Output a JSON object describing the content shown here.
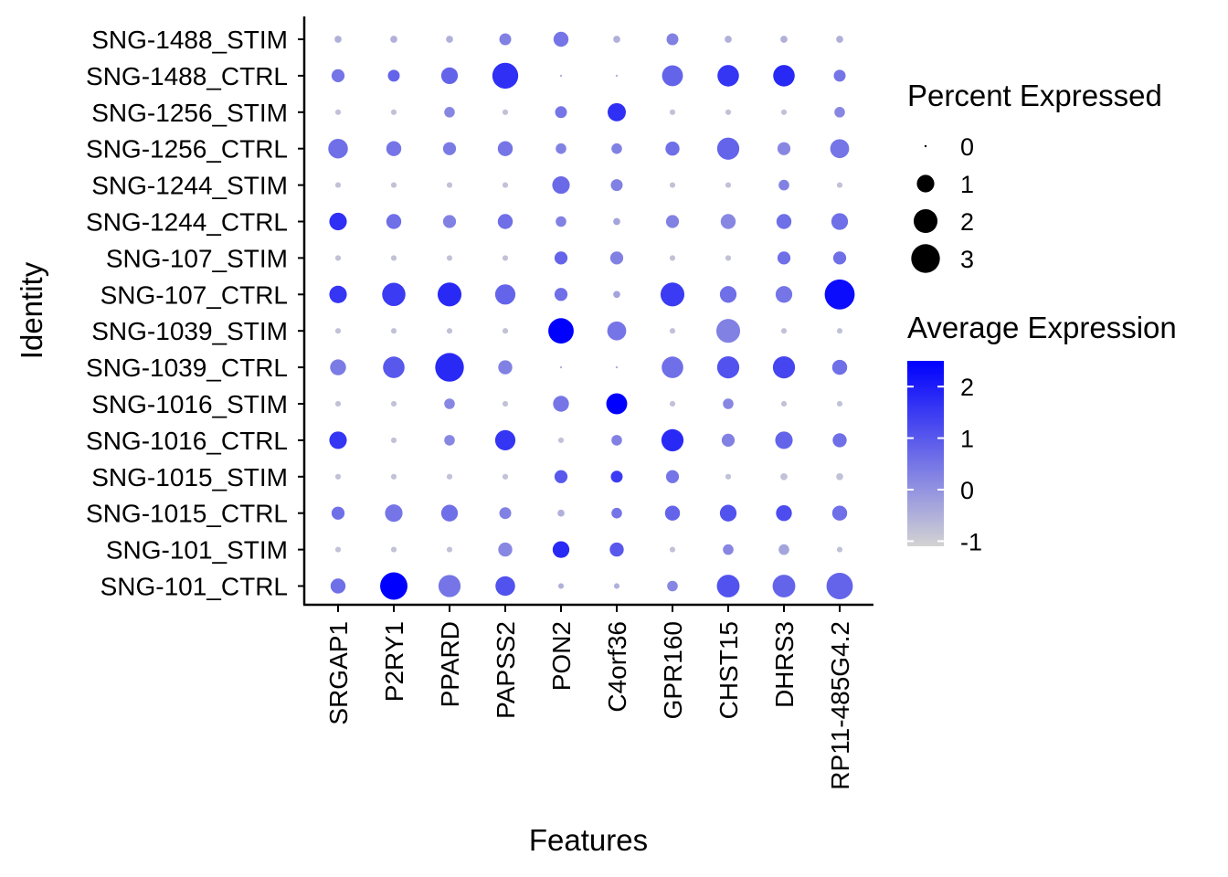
{
  "chart_data": {
    "type": "dotplot",
    "xlabel": "Features",
    "ylabel": "Identity",
    "features": [
      "SRGAP1",
      "P2RY1",
      "PPARD",
      "PAPSS2",
      "PON2",
      "C4orf36",
      "GPR160",
      "CHST15",
      "DHRS3",
      "RP11-485G4.2"
    ],
    "identities": [
      "SNG-1488_STIM",
      "SNG-1488_CTRL",
      "SNG-1256_STIM",
      "SNG-1256_CTRL",
      "SNG-1244_STIM",
      "SNG-1244_CTRL",
      "SNG-107_STIM",
      "SNG-107_CTRL",
      "SNG-1039_STIM",
      "SNG-1039_CTRL",
      "SNG-1016_STIM",
      "SNG-1016_CTRL",
      "SNG-1015_STIM",
      "SNG-1015_CTRL",
      "SNG-101_STIM",
      "SNG-101_CTRL"
    ],
    "percent_expressed": [
      [
        0.1,
        0.1,
        0.1,
        0.4,
        0.7,
        0.1,
        0.4,
        0.1,
        0.1,
        0.1
      ],
      [
        0.5,
        0.4,
        0.9,
        2.4,
        0.0,
        0.0,
        1.5,
        1.6,
        1.6,
        0.4
      ],
      [
        0.05,
        0.05,
        0.3,
        0.05,
        0.4,
        1.1,
        0.05,
        0.05,
        0.05,
        0.3
      ],
      [
        1.3,
        0.7,
        0.5,
        0.7,
        0.3,
        0.3,
        0.6,
        1.7,
        0.5,
        1.2
      ],
      [
        0.05,
        0.05,
        0.05,
        0.05,
        1.0,
        0.4,
        0.05,
        0.05,
        0.3,
        0.05
      ],
      [
        1.0,
        0.7,
        0.5,
        0.7,
        0.3,
        0.1,
        0.5,
        0.7,
        0.7,
        0.9
      ],
      [
        0.05,
        0.05,
        0.05,
        0.05,
        0.5,
        0.5,
        0.05,
        0.05,
        0.5,
        0.5
      ],
      [
        1.0,
        1.9,
        2.0,
        1.4,
        0.5,
        0.1,
        2.0,
        0.9,
        0.9,
        3.3
      ],
      [
        0.05,
        0.05,
        0.05,
        0.05,
        2.3,
        1.2,
        0.05,
        2.0,
        0.05,
        0.05
      ],
      [
        0.8,
        1.6,
        3.0,
        0.6,
        0.0,
        0.0,
        1.6,
        1.7,
        1.7,
        0.7
      ],
      [
        0.05,
        0.05,
        0.3,
        0.05,
        0.8,
        1.5,
        0.05,
        0.3,
        0.05,
        0.05
      ],
      [
        1.0,
        0.05,
        0.3,
        1.4,
        0.05,
        0.3,
        1.7,
        0.5,
        1.0,
        0.6
      ],
      [
        0.05,
        0.05,
        0.05,
        0.05,
        0.5,
        0.4,
        0.5,
        0.05,
        0.1,
        0.1
      ],
      [
        0.5,
        1.0,
        0.9,
        0.4,
        0.1,
        0.3,
        0.7,
        0.9,
        0.8,
        0.7
      ],
      [
        0.05,
        0.05,
        0.05,
        0.6,
        0.9,
        0.6,
        0.05,
        0.3,
        0.3,
        0.05
      ],
      [
        0.7,
        2.7,
        1.7,
        1.3,
        0.05,
        0.05,
        0.3,
        1.8,
        1.8,
        2.5
      ]
    ],
    "average_expression": [
      [
        -0.5,
        -0.5,
        -0.5,
        0.3,
        0.5,
        -0.5,
        0.3,
        -0.5,
        -0.5,
        -0.5
      ],
      [
        0.5,
        0.8,
        0.8,
        1.7,
        -0.5,
        -0.5,
        0.8,
        1.6,
        1.8,
        0.5
      ],
      [
        -0.8,
        -0.8,
        0.2,
        -0.8,
        0.5,
        1.7,
        -0.8,
        -0.8,
        -0.8,
        0.2
      ],
      [
        0.6,
        0.5,
        0.4,
        0.5,
        0.3,
        0.3,
        0.6,
        0.8,
        0.2,
        0.5
      ],
      [
        -0.8,
        -0.8,
        -0.8,
        -0.8,
        0.7,
        0.3,
        -0.8,
        -0.8,
        0.3,
        -0.8
      ],
      [
        1.7,
        0.6,
        0.3,
        0.6,
        0.3,
        -0.3,
        0.3,
        0.2,
        0.6,
        0.6
      ],
      [
        -0.8,
        -0.8,
        -0.8,
        -0.8,
        0.8,
        0.3,
        -0.8,
        -0.8,
        0.6,
        0.6
      ],
      [
        1.6,
        1.5,
        1.8,
        0.8,
        0.6,
        -0.3,
        1.5,
        0.6,
        0.5,
        2.3
      ],
      [
        -0.8,
        -0.8,
        -0.8,
        -0.8,
        2.5,
        0.5,
        -0.8,
        0.3,
        -0.8,
        -0.8
      ],
      [
        0.4,
        1.0,
        1.8,
        0.3,
        -0.5,
        -0.5,
        0.6,
        1.1,
        1.3,
        0.6
      ],
      [
        -0.8,
        -0.8,
        0.2,
        -0.8,
        0.5,
        2.5,
        -0.8,
        0.2,
        -0.8,
        -0.8
      ],
      [
        1.6,
        -0.8,
        0.2,
        1.6,
        -0.8,
        0.3,
        1.8,
        0.3,
        0.8,
        0.6
      ],
      [
        -0.8,
        -0.8,
        -0.8,
        -0.8,
        1.0,
        1.5,
        0.5,
        -0.8,
        -0.8,
        -0.8
      ],
      [
        0.6,
        0.5,
        0.6,
        0.3,
        -0.5,
        0.5,
        0.8,
        1.1,
        1.2,
        0.6
      ],
      [
        -0.8,
        -0.8,
        -0.8,
        0.2,
        1.8,
        1.0,
        -0.8,
        0.2,
        -0.3,
        -0.8
      ],
      [
        0.6,
        2.5,
        0.5,
        1.1,
        -0.5,
        -0.5,
        0.2,
        1.1,
        0.8,
        0.8
      ]
    ],
    "size_legend": {
      "title": "Percent Expressed",
      "values": [
        0,
        1,
        2,
        3
      ]
    },
    "color_legend": {
      "title": "Average Expression",
      "ticks": [
        2,
        1,
        0,
        -1
      ],
      "range": [
        -1.1,
        2.5
      ],
      "low_color": "#d3d3d3",
      "high_color": "#0000ff"
    },
    "grid": false
  }
}
